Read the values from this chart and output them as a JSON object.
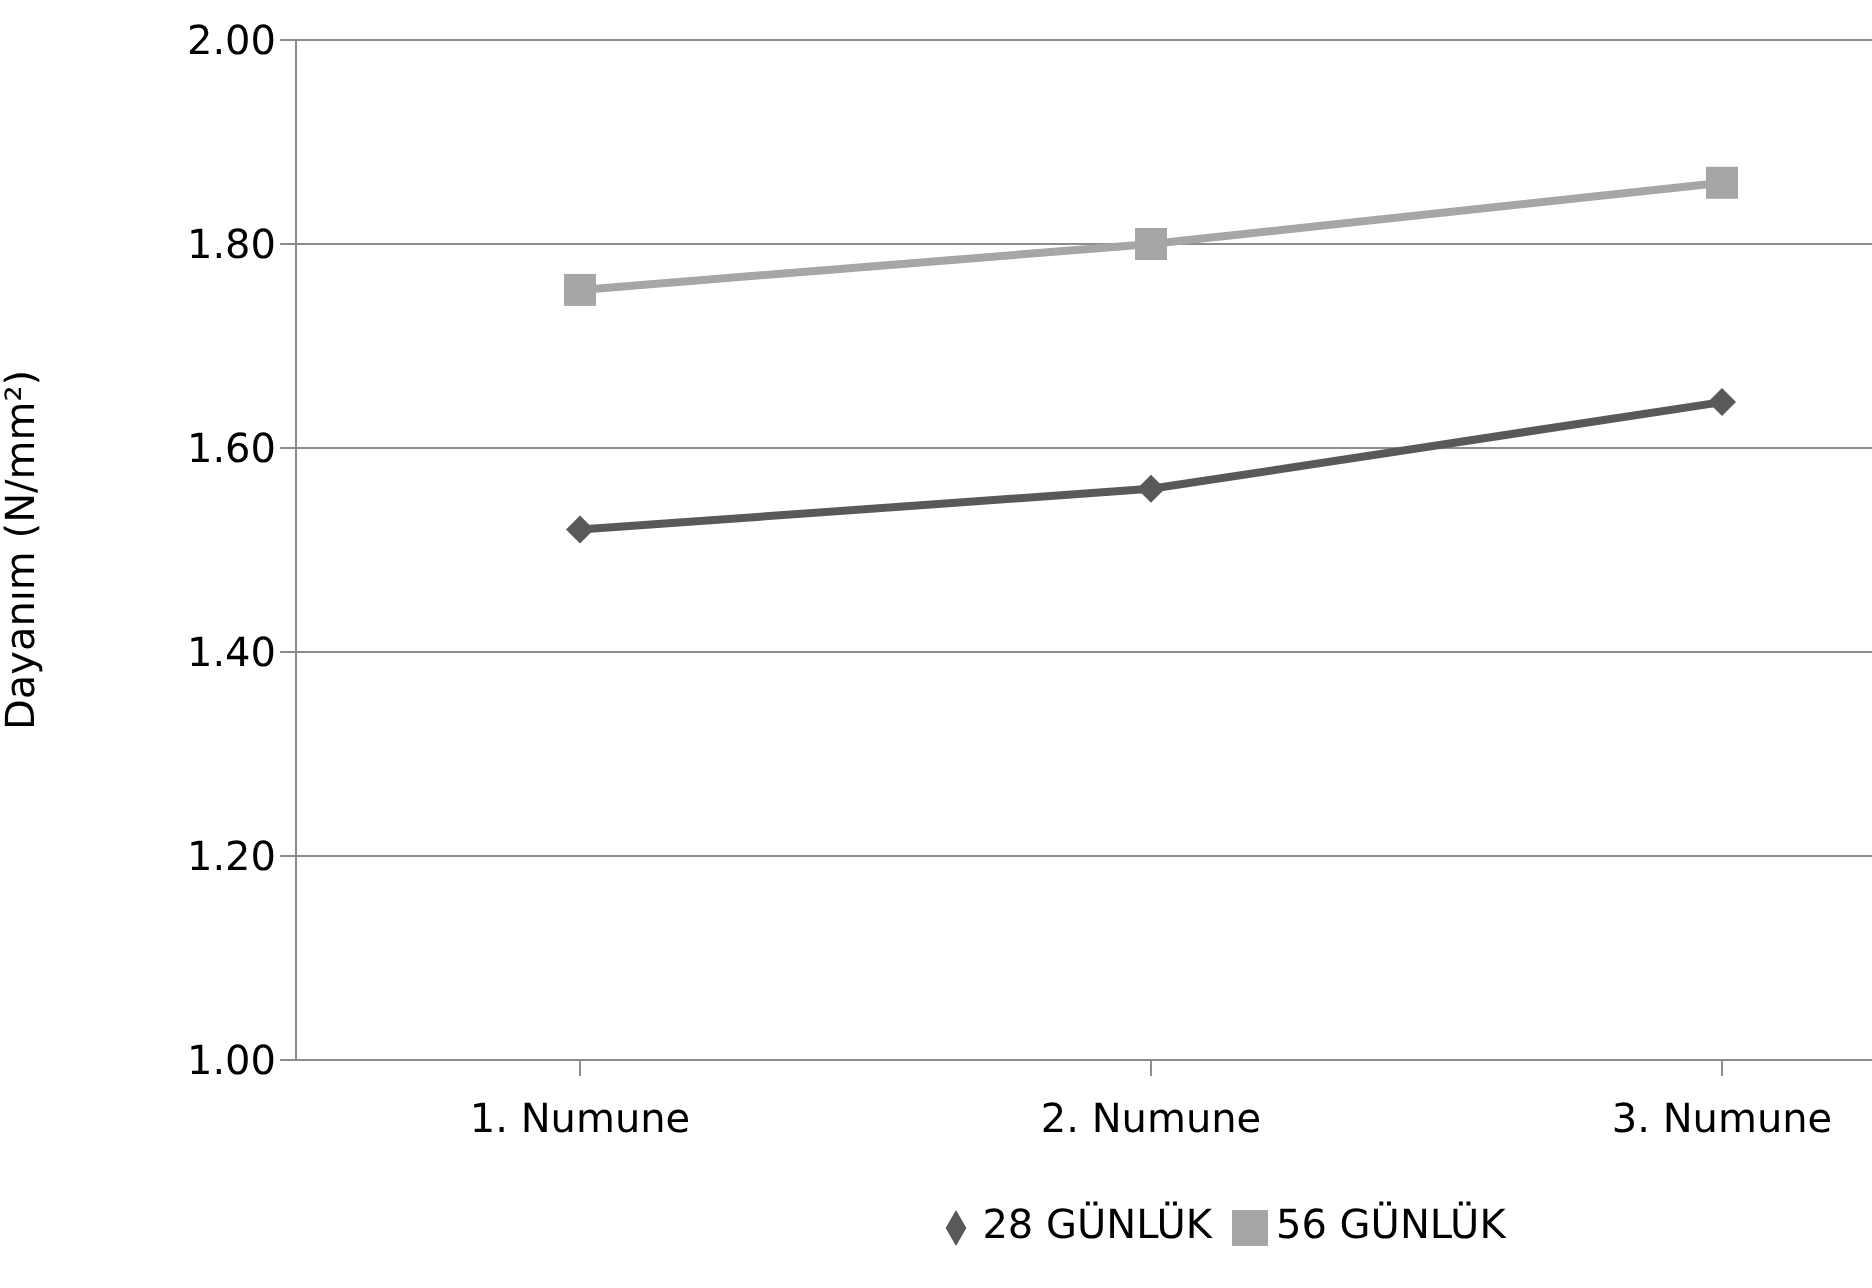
{
  "chart_data": {
    "type": "line",
    "ylabel": "Dayanım (N/mm²)",
    "categories": [
      "1. Numune",
      "2. Numune",
      "3. Numune"
    ],
    "series": [
      {
        "name": "28 GÜNLÜK",
        "color": "#595959",
        "values": [
          1.52,
          1.56,
          1.645
        ],
        "marker": "diamond"
      },
      {
        "name": "56 GÜNLÜK",
        "color": "#a6a6a6",
        "values": [
          1.755,
          1.8,
          1.86
        ],
        "marker": "square"
      }
    ],
    "ylim": [
      1,
      2
    ],
    "yticks": [
      {
        "value": 1,
        "label": "1.00"
      },
      {
        "value": 1.2,
        "label": "1.20"
      },
      {
        "value": 1.4,
        "label": "1.40"
      },
      {
        "value": 1.6,
        "label": "1.60"
      },
      {
        "value": 1.8,
        "label": "1.80"
      },
      {
        "value": 2,
        "label": "2.00"
      }
    ],
    "grid": "y",
    "legend": "bottom"
  }
}
